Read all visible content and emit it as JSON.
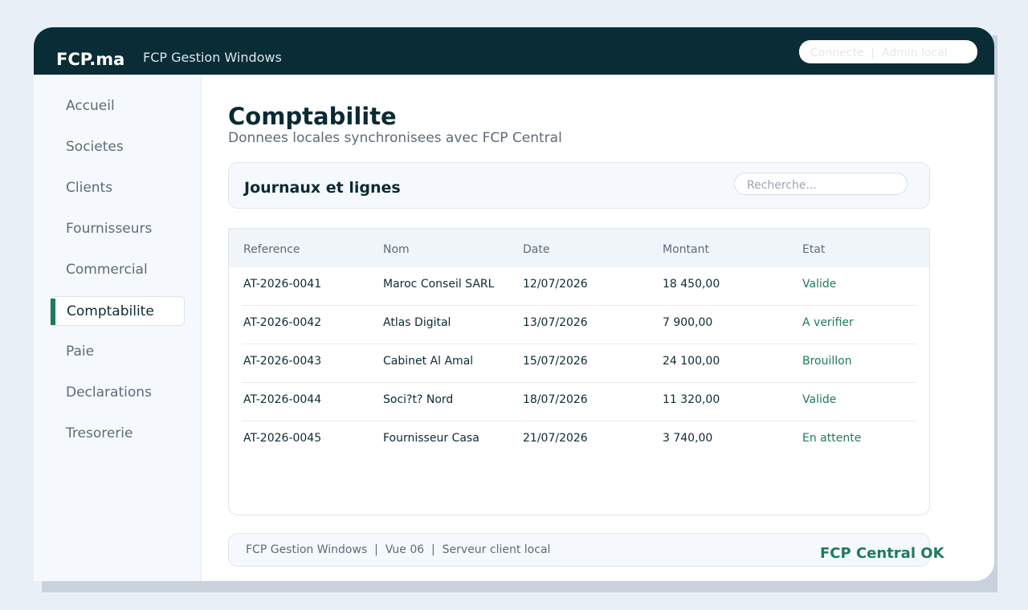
{
  "header": {
    "brand": "FCP.ma",
    "app": "FCP Gestion Windows",
    "status": "Connecte  |  Admin local"
  },
  "sidebar": {
    "items": [
      "Accueil",
      "Societes",
      "Clients",
      "Fournisseurs",
      "Commercial",
      "Comptabilite",
      "Paie",
      "Declarations",
      "Tresorerie"
    ],
    "active": 5
  },
  "page": {
    "title": "Comptabilite",
    "subtitle": "Donnees locales synchronisees avec FCP Central"
  },
  "panel": {
    "title": "Journaux et lignes",
    "search_placeholder": "Recherche..."
  },
  "table": {
    "columns": [
      "Reference",
      "Nom",
      "Date",
      "Montant",
      "Etat"
    ],
    "rows": [
      [
        "AT-2026-0041",
        "Maroc Conseil SARL",
        "12/07/2026",
        "18 450,00",
        "Valide"
      ],
      [
        "AT-2026-0042",
        "Atlas Digital",
        "13/07/2026",
        "7 900,00",
        "A verifier"
      ],
      [
        "AT-2026-0043",
        "Cabinet Al Amal",
        "15/07/2026",
        "24 100,00",
        "Brouillon"
      ],
      [
        "AT-2026-0044",
        "Soci?t? Nord",
        "18/07/2026",
        "11 320,00",
        "Valide"
      ],
      [
        "AT-2026-0045",
        "Fournisseur Casa",
        "21/07/2026",
        "3 740,00",
        "En attente"
      ]
    ]
  },
  "footer": {
    "info": "FCP Gestion Windows  |  Vue 06  |  Serveur client local",
    "status": "FCP Central OK"
  }
}
